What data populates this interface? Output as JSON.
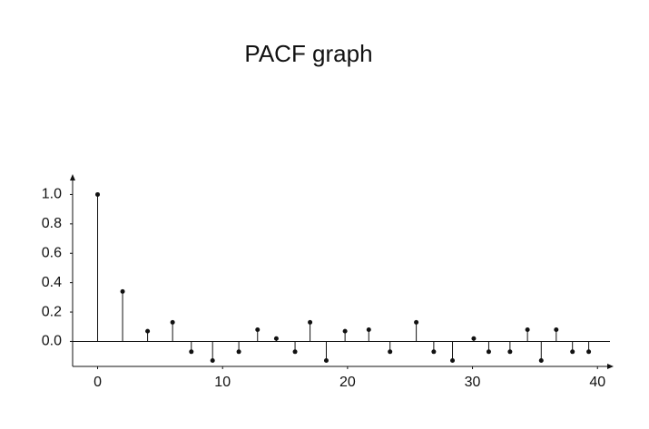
{
  "chart_data": {
    "type": "stem",
    "title": "PACF graph",
    "x": [
      0,
      2,
      4,
      6,
      7.5,
      9.2,
      11.3,
      12.8,
      14.3,
      15.8,
      17,
      18.3,
      19.8,
      21.7,
      23.4,
      25.5,
      26.9,
      28.4,
      30.1,
      31.3,
      33,
      34.4,
      35.5,
      36.7,
      38,
      39.3
    ],
    "values": [
      1.0,
      0.34,
      0.07,
      0.13,
      -0.07,
      -0.13,
      -0.07,
      0.08,
      0.02,
      -0.07,
      0.13,
      -0.13,
      0.07,
      0.08,
      -0.07,
      0.13,
      -0.07,
      -0.13,
      0.02,
      -0.07,
      -0.07,
      0.08,
      -0.13,
      0.08,
      -0.07,
      -0.07
    ],
    "color": "#111111",
    "xlim": [
      -2,
      41
    ],
    "xticks": [
      0,
      10,
      20,
      30,
      40
    ],
    "ylim": [
      -0.17,
      1.12
    ],
    "yticks": [
      {
        "value": 0,
        "label": "0.0"
      },
      0.2,
      0.4,
      0.6,
      0.8,
      {
        "value": 1,
        "label": "1.0"
      }
    ]
  }
}
